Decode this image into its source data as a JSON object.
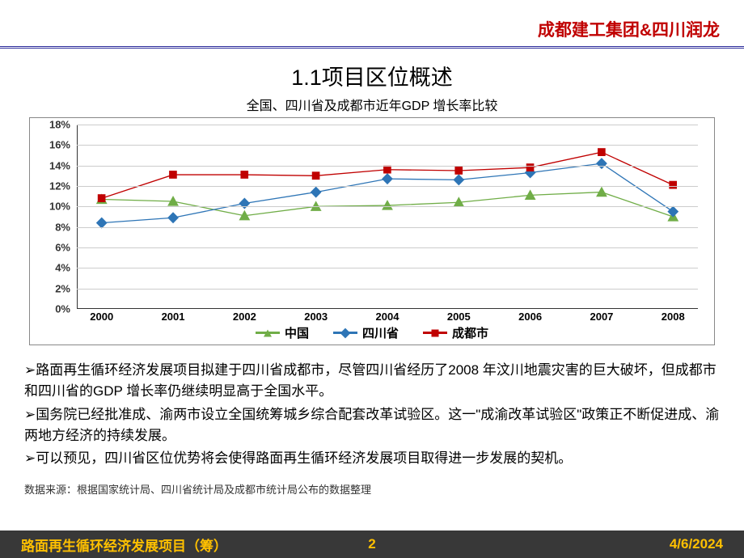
{
  "header": {
    "company": "成都建工集团&四川润龙"
  },
  "title": "1.1项目区位概述",
  "subtitle": "全国、四川省及成都市近年GDP 增长率比较",
  "chart": {
    "type": "line",
    "categories": [
      "2000",
      "2001",
      "2002",
      "2003",
      "2004",
      "2005",
      "2006",
      "2007",
      "2008"
    ],
    "ymin": 0,
    "ymax": 18,
    "ytick_step": 2,
    "ytick_suffix": "%",
    "background_color": "#ffffff",
    "grid_color": "#cccccc",
    "axis_color": "#333333",
    "label_fontsize": 13,
    "label_fontweight": "bold",
    "line_width": 3,
    "marker_size": 7,
    "series": [
      {
        "name": "中国",
        "color": "#70AD47",
        "marker": "triangle",
        "values": [
          10.7,
          10.5,
          9.1,
          10.0,
          10.1,
          10.4,
          11.1,
          11.4,
          9.0
        ]
      },
      {
        "name": "四川省",
        "color": "#2E75B6",
        "marker": "diamond",
        "values": [
          8.4,
          8.9,
          10.3,
          11.4,
          12.7,
          12.6,
          13.3,
          14.2,
          9.5
        ]
      },
      {
        "name": "成都市",
        "color": "#C00000",
        "marker": "square",
        "values": [
          10.8,
          13.1,
          13.1,
          13.0,
          13.6,
          13.5,
          13.8,
          15.3,
          12.1
        ]
      }
    ]
  },
  "bullets": [
    "路面再生循环经济发展项目拟建于四川省成都市，尽管四川省经历了2008 年汶川地震灾害的巨大破坏，但成都市和四川省的GDP 增长率仍继续明显高于全国水平。",
    "国务院已经批准成、渝两市设立全国统筹城乡综合配套改革试验区。这一\"成渝改革试验区\"政策正不断促进成、渝两地方经济的持续发展。",
    "可以预见，四川省区位优势将会使得路面再生循环经济发展项目取得进一步发展的契机。"
  ],
  "source": "数据来源：根据国家统计局、四川省统计局及成都市统计局公布的数据整理",
  "footer": {
    "project": "路面再生循环经济发展项目（筹）",
    "page": "2",
    "date": "4/6/2024"
  }
}
